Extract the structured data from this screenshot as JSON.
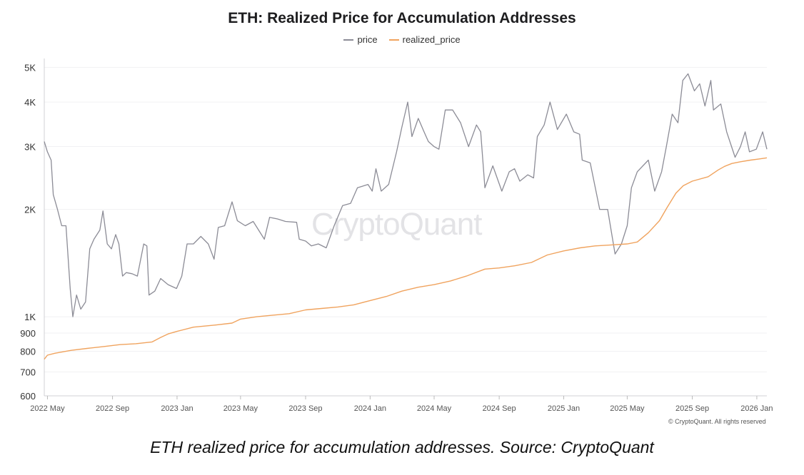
{
  "chart_data": {
    "type": "line",
    "title": "ETH: Realized Price for Accumulation Addresses",
    "xlabel": "",
    "ylabel": "",
    "yscale": "log",
    "ylim": [
      600,
      5300
    ],
    "xlim": [
      "2022-04-25",
      "2026-01-20"
    ],
    "yticks": [
      {
        "value": 600,
        "label": "600"
      },
      {
        "value": 700,
        "label": "700"
      },
      {
        "value": 800,
        "label": "800"
      },
      {
        "value": 900,
        "label": "900"
      },
      {
        "value": 1000,
        "label": "1K"
      },
      {
        "value": 2000,
        "label": "2K"
      },
      {
        "value": 3000,
        "label": "3K"
      },
      {
        "value": 4000,
        "label": "4K"
      },
      {
        "value": 5000,
        "label": "5K"
      }
    ],
    "xticks": [
      {
        "date": "2022-05-01",
        "label": "2022 May"
      },
      {
        "date": "2022-09-01",
        "label": "2022 Sep"
      },
      {
        "date": "2023-01-01",
        "label": "2023 Jan"
      },
      {
        "date": "2023-05-01",
        "label": "2023 May"
      },
      {
        "date": "2023-09-01",
        "label": "2023 Sep"
      },
      {
        "date": "2024-01-01",
        "label": "2024 Jan"
      },
      {
        "date": "2024-05-01",
        "label": "2024 May"
      },
      {
        "date": "2024-09-01",
        "label": "2024 Sep"
      },
      {
        "date": "2025-01-01",
        "label": "2025 Jan"
      },
      {
        "date": "2025-05-01",
        "label": "2025 May"
      },
      {
        "date": "2025-09-01",
        "label": "2025 Sep"
      },
      {
        "date": "2026-01-01",
        "label": "2026 Jan"
      }
    ],
    "series": [
      {
        "name": "price",
        "color": "#8c8c96",
        "points": [
          [
            "2022-04-25",
            3100
          ],
          [
            "2022-05-01",
            2900
          ],
          [
            "2022-05-08",
            2750
          ],
          [
            "2022-05-12",
            2200
          ],
          [
            "2022-05-20",
            2000
          ],
          [
            "2022-05-28",
            1800
          ],
          [
            "2022-06-05",
            1800
          ],
          [
            "2022-06-13",
            1200
          ],
          [
            "2022-06-18",
            1000
          ],
          [
            "2022-06-25",
            1150
          ],
          [
            "2022-07-03",
            1050
          ],
          [
            "2022-07-12",
            1100
          ],
          [
            "2022-07-20",
            1550
          ],
          [
            "2022-07-28",
            1650
          ],
          [
            "2022-08-08",
            1750
          ],
          [
            "2022-08-14",
            1980
          ],
          [
            "2022-08-22",
            1600
          ],
          [
            "2022-08-30",
            1550
          ],
          [
            "2022-09-07",
            1700
          ],
          [
            "2022-09-13",
            1600
          ],
          [
            "2022-09-20",
            1300
          ],
          [
            "2022-09-27",
            1330
          ],
          [
            "2022-10-08",
            1320
          ],
          [
            "2022-10-18",
            1300
          ],
          [
            "2022-10-30",
            1600
          ],
          [
            "2022-11-05",
            1580
          ],
          [
            "2022-11-09",
            1150
          ],
          [
            "2022-11-20",
            1180
          ],
          [
            "2022-12-01",
            1280
          ],
          [
            "2022-12-15",
            1230
          ],
          [
            "2022-12-31",
            1200
          ],
          [
            "2023-01-10",
            1300
          ],
          [
            "2023-01-20",
            1600
          ],
          [
            "2023-02-01",
            1600
          ],
          [
            "2023-02-15",
            1680
          ],
          [
            "2023-03-01",
            1600
          ],
          [
            "2023-03-12",
            1450
          ],
          [
            "2023-03-20",
            1780
          ],
          [
            "2023-04-01",
            1800
          ],
          [
            "2023-04-15",
            2100
          ],
          [
            "2023-04-25",
            1860
          ],
          [
            "2023-05-10",
            1800
          ],
          [
            "2023-05-25",
            1850
          ],
          [
            "2023-06-15",
            1650
          ],
          [
            "2023-06-25",
            1900
          ],
          [
            "2023-07-10",
            1880
          ],
          [
            "2023-07-25",
            1850
          ],
          [
            "2023-08-15",
            1840
          ],
          [
            "2023-08-20",
            1650
          ],
          [
            "2023-09-01",
            1630
          ],
          [
            "2023-09-12",
            1580
          ],
          [
            "2023-09-25",
            1600
          ],
          [
            "2023-10-10",
            1560
          ],
          [
            "2023-10-25",
            1800
          ],
          [
            "2023-11-10",
            2050
          ],
          [
            "2023-11-25",
            2080
          ],
          [
            "2023-12-08",
            2300
          ],
          [
            "2023-12-28",
            2350
          ],
          [
            "2024-01-05",
            2250
          ],
          [
            "2024-01-12",
            2600
          ],
          [
            "2024-01-22",
            2250
          ],
          [
            "2024-02-05",
            2350
          ],
          [
            "2024-02-20",
            2900
          ],
          [
            "2024-03-01",
            3400
          ],
          [
            "2024-03-12",
            4000
          ],
          [
            "2024-03-20",
            3200
          ],
          [
            "2024-04-01",
            3600
          ],
          [
            "2024-04-12",
            3300
          ],
          [
            "2024-04-20",
            3100
          ],
          [
            "2024-05-01",
            3000
          ],
          [
            "2024-05-10",
            2950
          ],
          [
            "2024-05-22",
            3800
          ],
          [
            "2024-06-05",
            3800
          ],
          [
            "2024-06-20",
            3500
          ],
          [
            "2024-07-05",
            3000
          ],
          [
            "2024-07-20",
            3450
          ],
          [
            "2024-07-28",
            3300
          ],
          [
            "2024-08-05",
            2300
          ],
          [
            "2024-08-20",
            2650
          ],
          [
            "2024-09-06",
            2250
          ],
          [
            "2024-09-20",
            2550
          ],
          [
            "2024-09-30",
            2600
          ],
          [
            "2024-10-10",
            2400
          ],
          [
            "2024-10-25",
            2500
          ],
          [
            "2024-11-05",
            2450
          ],
          [
            "2024-11-12",
            3200
          ],
          [
            "2024-11-25",
            3450
          ],
          [
            "2024-12-06",
            4000
          ],
          [
            "2024-12-20",
            3350
          ],
          [
            "2025-01-06",
            3700
          ],
          [
            "2025-01-20",
            3300
          ],
          [
            "2025-01-31",
            3250
          ],
          [
            "2025-02-05",
            2750
          ],
          [
            "2025-02-20",
            2700
          ],
          [
            "2025-03-10",
            2000
          ],
          [
            "2025-03-25",
            2000
          ],
          [
            "2025-04-08",
            1500
          ],
          [
            "2025-04-20",
            1600
          ],
          [
            "2025-05-01",
            1800
          ],
          [
            "2025-05-09",
            2300
          ],
          [
            "2025-05-20",
            2550
          ],
          [
            "2025-06-10",
            2750
          ],
          [
            "2025-06-22",
            2250
          ],
          [
            "2025-07-05",
            2550
          ],
          [
            "2025-07-14",
            3000
          ],
          [
            "2025-07-25",
            3700
          ],
          [
            "2025-08-05",
            3500
          ],
          [
            "2025-08-14",
            4600
          ],
          [
            "2025-08-24",
            4800
          ],
          [
            "2025-09-05",
            4300
          ],
          [
            "2025-09-15",
            4500
          ],
          [
            "2025-09-25",
            3900
          ],
          [
            "2025-10-06",
            4600
          ],
          [
            "2025-10-11",
            3800
          ],
          [
            "2025-10-25",
            3950
          ],
          [
            "2025-11-05",
            3300
          ],
          [
            "2025-11-21",
            2800
          ],
          [
            "2025-12-01",
            3000
          ],
          [
            "2025-12-10",
            3300
          ],
          [
            "2025-12-18",
            2900
          ],
          [
            "2025-12-31",
            2950
          ],
          [
            "2026-01-12",
            3300
          ],
          [
            "2026-01-20",
            2950
          ]
        ]
      },
      {
        "name": "realized_price",
        "color": "#f0a35e",
        "points": [
          [
            "2022-04-25",
            760
          ],
          [
            "2022-05-01",
            780
          ],
          [
            "2022-05-15",
            790
          ],
          [
            "2022-06-15",
            805
          ],
          [
            "2022-07-15",
            815
          ],
          [
            "2022-08-15",
            825
          ],
          [
            "2022-09-15",
            835
          ],
          [
            "2022-10-15",
            840
          ],
          [
            "2022-11-15",
            850
          ],
          [
            "2022-12-01",
            875
          ],
          [
            "2022-12-15",
            895
          ],
          [
            "2023-01-01",
            910
          ],
          [
            "2023-02-01",
            935
          ],
          [
            "2023-03-15",
            948
          ],
          [
            "2023-04-15",
            960
          ],
          [
            "2023-05-01",
            985
          ],
          [
            "2023-06-01",
            1000
          ],
          [
            "2023-07-01",
            1010
          ],
          [
            "2023-08-01",
            1020
          ],
          [
            "2023-09-01",
            1045
          ],
          [
            "2023-10-01",
            1055
          ],
          [
            "2023-11-01",
            1065
          ],
          [
            "2023-12-01",
            1080
          ],
          [
            "2024-01-01",
            1110
          ],
          [
            "2024-02-01",
            1140
          ],
          [
            "2024-03-01",
            1180
          ],
          [
            "2024-04-01",
            1210
          ],
          [
            "2024-05-01",
            1230
          ],
          [
            "2024-06-01",
            1260
          ],
          [
            "2024-07-01",
            1300
          ],
          [
            "2024-08-05",
            1360
          ],
          [
            "2024-09-01",
            1370
          ],
          [
            "2024-10-01",
            1390
          ],
          [
            "2024-11-01",
            1420
          ],
          [
            "2024-12-01",
            1490
          ],
          [
            "2025-01-01",
            1530
          ],
          [
            "2025-02-01",
            1560
          ],
          [
            "2025-03-01",
            1580
          ],
          [
            "2025-04-01",
            1590
          ],
          [
            "2025-05-01",
            1600
          ],
          [
            "2025-05-20",
            1620
          ],
          [
            "2025-06-10",
            1720
          ],
          [
            "2025-07-01",
            1860
          ],
          [
            "2025-07-15",
            2020
          ],
          [
            "2025-08-01",
            2220
          ],
          [
            "2025-08-15",
            2330
          ],
          [
            "2025-09-01",
            2400
          ],
          [
            "2025-10-01",
            2470
          ],
          [
            "2025-10-20",
            2580
          ],
          [
            "2025-11-01",
            2640
          ],
          [
            "2025-11-15",
            2690
          ],
          [
            "2025-12-01",
            2720
          ],
          [
            "2025-12-20",
            2750
          ],
          [
            "2026-01-05",
            2770
          ],
          [
            "2026-01-20",
            2790
          ]
        ]
      }
    ],
    "legend_position": "top-center",
    "grid": true
  },
  "watermark": "CryptoQuant",
  "copyright": "© CryptoQuant. All rights reserved",
  "caption": "ETH realized price for accumulation addresses. Source: CryptoQuant"
}
